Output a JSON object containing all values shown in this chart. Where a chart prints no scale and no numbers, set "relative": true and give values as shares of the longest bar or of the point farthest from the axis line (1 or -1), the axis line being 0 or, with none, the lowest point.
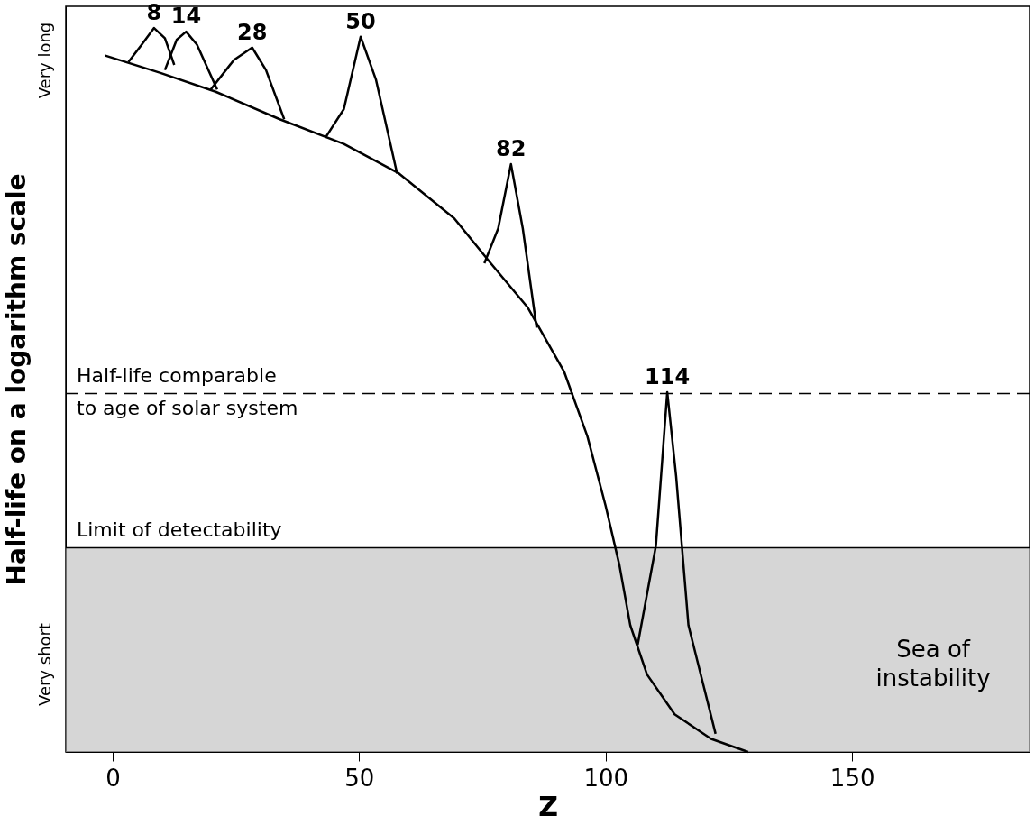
{
  "chart_data": {
    "type": "line",
    "relative": true,
    "xlabel": "Z",
    "ylabel": "Half-life on a logarithm scale",
    "xlim": [
      -9.5,
      186
    ],
    "xticks": [
      0,
      50,
      100,
      150
    ],
    "grid": false,
    "legend": false,
    "line_style": "solid",
    "marker": "none",
    "series": [
      {
        "color": "#000000",
        "x": [
          -1.5,
          9.7,
          20.9,
          33.9,
          46.9,
          58.1,
          69.3,
          76.7,
          84.2,
          91.6,
          96.3,
          100.0,
          102.8,
          105.0,
          108.4,
          114.0,
          121.4,
          128.9
        ],
        "values": [
          0.962,
          0.938,
          0.912,
          0.874,
          0.84,
          0.799,
          0.737,
          0.675,
          0.614,
          0.525,
          0.436,
          0.34,
          0.258,
          0.175,
          0.107,
          0.052,
          0.018,
          0.0
        ]
      },
      {
        "color": "#000000",
        "x": [
          3.2,
          5.9,
          8.4,
          10.6,
          12.5
        ],
        "values": [
          0.953,
          0.977,
          1.0,
          0.986,
          0.949
        ]
      },
      {
        "color": "#000000",
        "x": [
          10.6,
          13.0,
          14.9,
          17.1,
          21.2
        ],
        "values": [
          0.942,
          0.984,
          0.995,
          0.977,
          0.915
        ]
      },
      {
        "color": "#000000",
        "x": [
          19.9,
          24.6,
          28.3,
          31.1,
          34.8
        ],
        "values": [
          0.915,
          0.956,
          0.973,
          0.942,
          0.874
        ]
      },
      {
        "color": "#000000",
        "x": [
          43.2,
          46.9,
          50.3,
          53.4,
          57.7
        ],
        "values": [
          0.849,
          0.888,
          0.988,
          0.929,
          0.799
        ]
      },
      {
        "color": "#000000",
        "x": [
          75.4,
          78.2,
          80.8,
          83.2,
          86.0
        ],
        "values": [
          0.675,
          0.723,
          0.812,
          0.723,
          0.586
        ]
      },
      {
        "color": "#000000",
        "x": [
          106.5,
          110.2,
          112.5,
          114.3,
          116.8,
          122.3
        ],
        "values": [
          0.148,
          0.285,
          0.497,
          0.381,
          0.175,
          0.025
        ]
      }
    ],
    "annotations": [
      "Very long",
      "Very short",
      {
        "text": "8",
        "x": 8.4,
        "y": 1.0
      },
      {
        "text": "14",
        "x": 14.9,
        "y": 0.995
      },
      {
        "text": "28",
        "x": 28.3,
        "y": 0.973
      },
      {
        "text": "50",
        "x": 50.3,
        "y": 0.988
      },
      {
        "text": "82",
        "x": 80.8,
        "y": 0.812
      },
      {
        "text": "114",
        "x": 112.5,
        "y": 0.497
      }
    ],
    "ref_lines": [
      {
        "axis": "y",
        "value": 0.495,
        "label": "Half-life comparable\nto age of solar system",
        "line_style": "dashed",
        "color": "#000000"
      },
      {
        "axis": "y",
        "value": 0.282,
        "label": "Limit of detectability",
        "line_style": "solid",
        "color": "#000000"
      }
    ],
    "bands": [
      {
        "axis": "y",
        "from": 0,
        "to": 0.282,
        "label": "Sea of\ninstability",
        "color": "#bbbbbb"
      }
    ]
  }
}
